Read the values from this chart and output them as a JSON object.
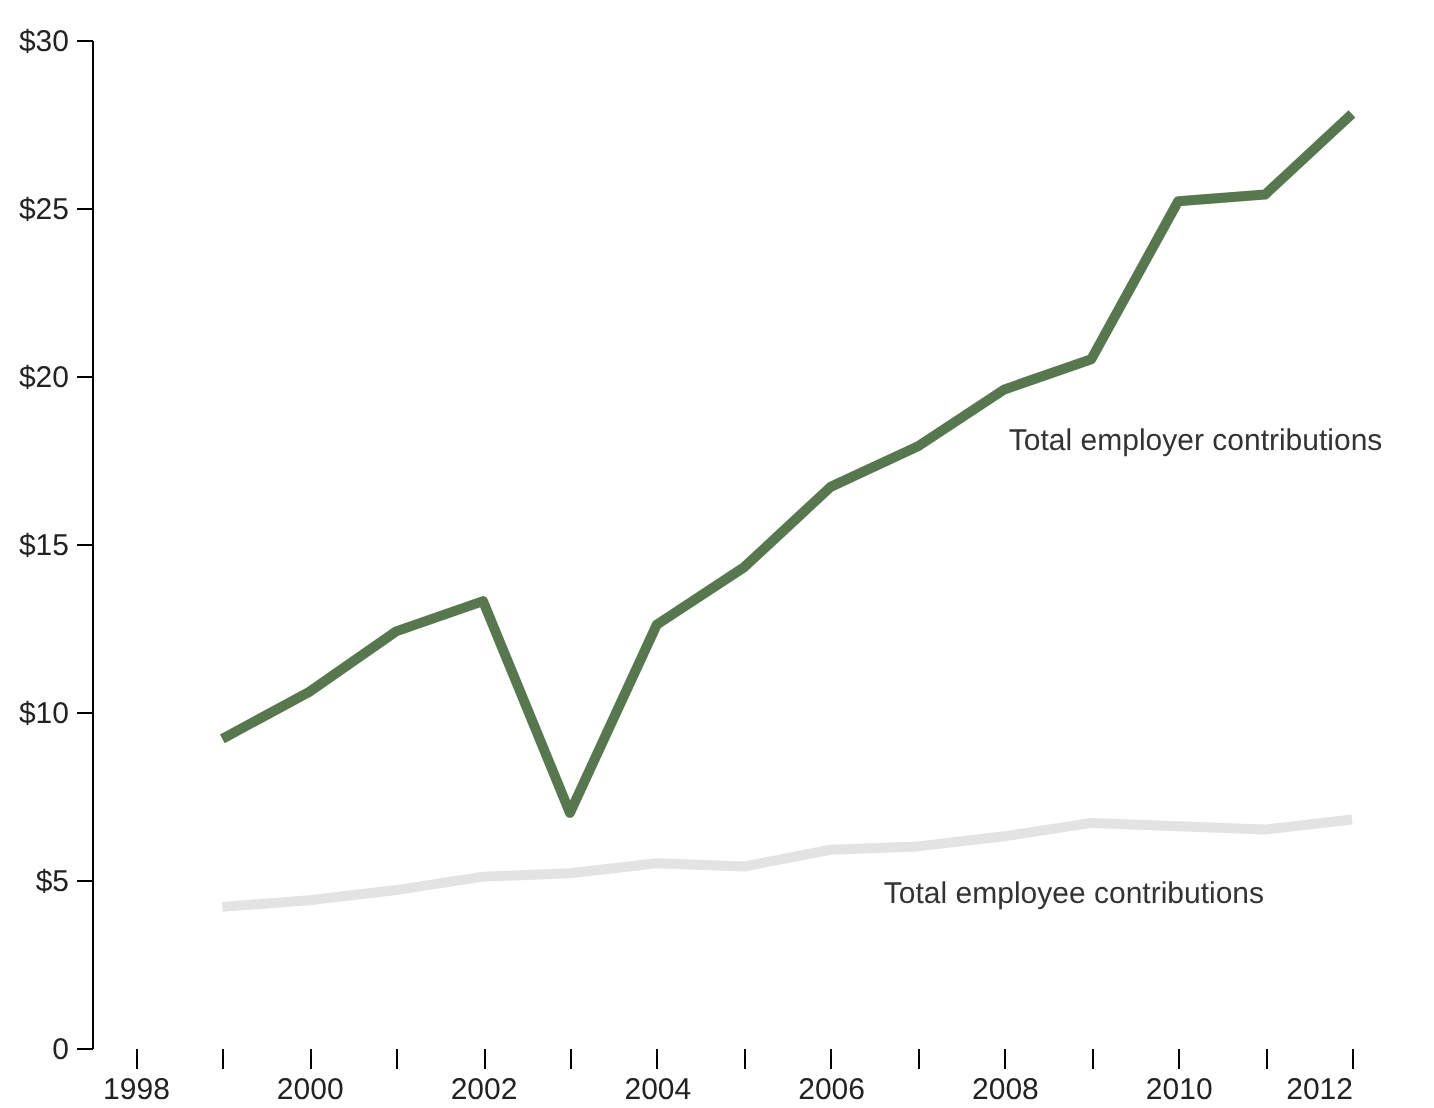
{
  "chart_data": {
    "type": "line",
    "x": [
      1999,
      2000,
      2001,
      2002,
      2003,
      2004,
      2005,
      2006,
      2007,
      2008,
      2009,
      2010,
      2011,
      2012
    ],
    "series": [
      {
        "name": "Total employer contributions",
        "color": "#57784f",
        "values": [
          9.2,
          10.6,
          12.4,
          13.3,
          7.0,
          12.6,
          14.3,
          16.7,
          17.9,
          19.6,
          20.5,
          25.2,
          25.4,
          27.8
        ]
      },
      {
        "name": "Total employee contributions",
        "color": "#e3e3e3",
        "values": [
          4.2,
          4.4,
          4.7,
          5.1,
          5.2,
          5.5,
          5.4,
          5.9,
          6.0,
          6.3,
          6.7,
          6.6,
          6.5,
          6.8
        ]
      }
    ],
    "xlim": [
      1997.5,
      2012
    ],
    "xticks": [
      1998,
      {
        "value": 1999,
        "label": null
      },
      2000,
      {
        "value": 2001,
        "label": null
      },
      2002,
      {
        "value": 2003,
        "label": null
      },
      2004,
      {
        "value": 2005,
        "label": null
      },
      2006,
      {
        "value": 2007,
        "label": null
      },
      2008,
      {
        "value": 2009,
        "label": null
      },
      2010,
      {
        "value": 2011,
        "label": null
      },
      2012
    ],
    "ylim": [
      0,
      30
    ],
    "yticks": [
      0,
      {
        "value": 5,
        "label": "$5"
      },
      {
        "value": 10,
        "label": "$10"
      },
      {
        "value": 15,
        "label": "$15"
      },
      {
        "value": 20,
        "label": "$20"
      },
      {
        "value": 25,
        "label": "$25"
      },
      {
        "value": 30,
        "label": "$30"
      }
    ],
    "grid": false,
    "legend": false,
    "marker": "none",
    "line_style": "solid"
  }
}
